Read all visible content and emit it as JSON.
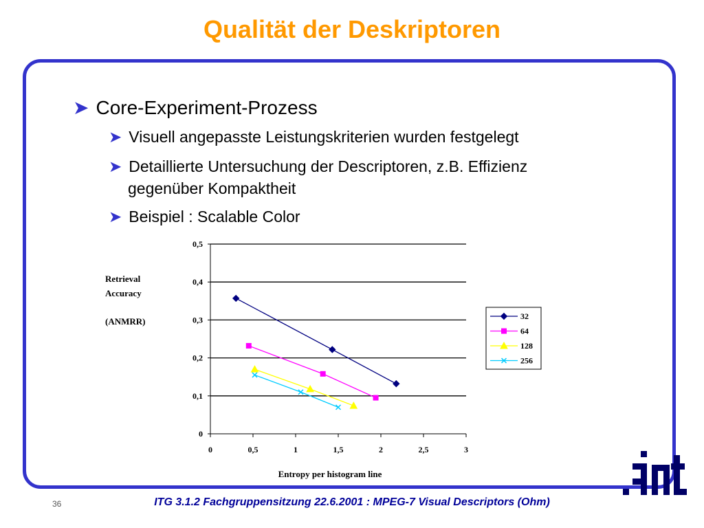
{
  "title": "Qualität der Deskriptoren",
  "bullets": {
    "main": "Core-Experiment-Prozess",
    "sub1": "Visuell angepasste Leistungskriterien wurden festgelegt",
    "sub2_line1": "Detaillierte Untersuchung der Descriptoren, z.B. Effizienz",
    "sub2_line2": "gegenüber Kompaktheit",
    "sub3": "Beispiel : Scalable Color"
  },
  "chart_data": {
    "type": "line",
    "xlabel": "Entropy per histogram line",
    "ylabel_lines": [
      "Retrieval",
      "Accuracy",
      "(ANMRR)"
    ],
    "xlim": [
      0,
      3
    ],
    "ylim": [
      0,
      0.5
    ],
    "xticks": [
      "0",
      "0,5",
      "1",
      "1,5",
      "2",
      "2,5",
      "3"
    ],
    "yticks": [
      "0",
      "0,1",
      "0,2",
      "0,3",
      "0,4",
      "0,5"
    ],
    "grid": "horizontal",
    "legend_position": "right",
    "series": [
      {
        "name": "32",
        "marker": "diamond",
        "color": "#000080",
        "points": [
          [
            0.3,
            0.357
          ],
          [
            1.43,
            0.222
          ],
          [
            2.18,
            0.132
          ]
        ]
      },
      {
        "name": "64",
        "marker": "square",
        "color": "#ff00ff",
        "points": [
          [
            0.45,
            0.232
          ],
          [
            1.32,
            0.158
          ],
          [
            1.94,
            0.095
          ]
        ]
      },
      {
        "name": "128",
        "marker": "triangle",
        "color": "#ffff00",
        "points": [
          [
            0.52,
            0.17
          ],
          [
            1.17,
            0.118
          ],
          [
            1.68,
            0.074
          ]
        ]
      },
      {
        "name": "256",
        "marker": "x",
        "color": "#00ccff",
        "points": [
          [
            0.52,
            0.155
          ],
          [
            1.06,
            0.11
          ],
          [
            1.5,
            0.07
          ]
        ]
      }
    ]
  },
  "footer": "ITG 3.1.2 Fachgruppensitzung 22.6.2001 : MPEG-7 Visual Descriptors (Ohm)",
  "page_number": "36",
  "logo_text": "INT"
}
